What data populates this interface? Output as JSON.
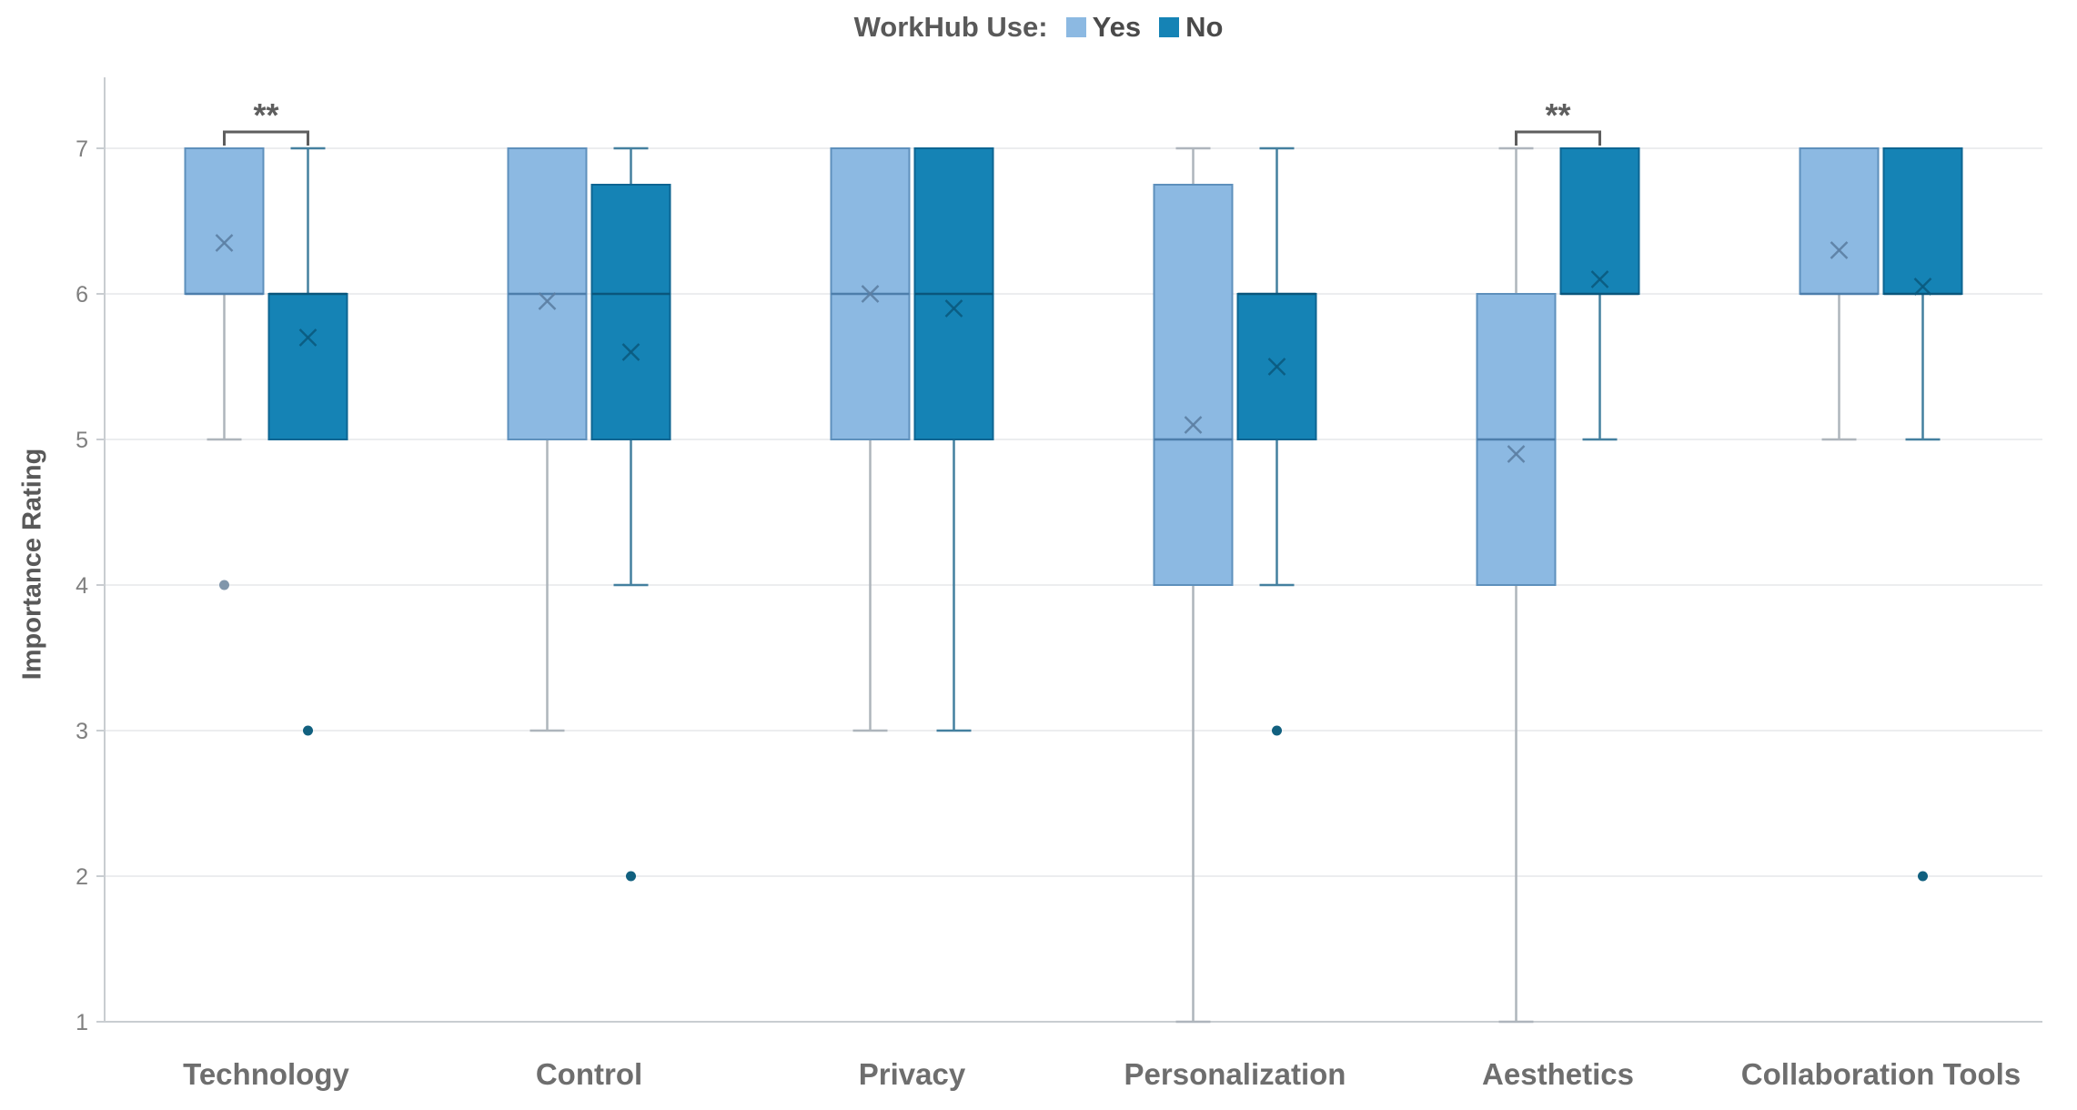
{
  "legend": {
    "title": "WorkHub Use:",
    "items": [
      {
        "label": "Yes",
        "color": "#8CB9E2"
      },
      {
        "label": "No",
        "color": "#1583B5"
      }
    ]
  },
  "colors": {
    "yes_fill": "#8CB9E2",
    "yes_border": "#5E90BC",
    "yes_whisker": "#AEB5BC",
    "yes_median": "#4D7EAB",
    "yes_mean": "#5C7FA3",
    "yes_outlier": "#8096AB",
    "no_fill": "#1583B5",
    "no_border": "#0D6592",
    "no_whisker": "#44809F",
    "no_median": "#0A567C",
    "no_mean": "#0B5A7F",
    "no_outlier": "#11607F",
    "grid": "#ECEDEF",
    "axis": "#C9CDD1",
    "tick_text": "#7F7F7F",
    "category_text": "#6E6E6E",
    "bracket": "#5E5E5E"
  },
  "chart_data": {
    "type": "boxplot",
    "title": "",
    "xlabel": "",
    "ylabel": "Importance Rating",
    "ylim": [
      1,
      7
    ],
    "yticks": [
      1,
      2,
      3,
      4,
      5,
      6,
      7
    ],
    "grid": true,
    "legend_position": "top",
    "categories": [
      "Technology",
      "Control",
      "Privacy",
      "Personalization",
      "Aesthetics",
      "Collaboration Tools"
    ],
    "series": [
      {
        "name": "Yes",
        "color": "#8CB9E2",
        "boxes": [
          {
            "q1": 6,
            "median": 6,
            "q3": 7,
            "mean": 6.35,
            "whisker_low": 5,
            "whisker_high": 7,
            "outliers": [
              4
            ]
          },
          {
            "q1": 5,
            "median": 6,
            "q3": 7,
            "mean": 5.95,
            "whisker_low": 3,
            "whisker_high": 7,
            "outliers": []
          },
          {
            "q1": 5,
            "median": 6,
            "q3": 7,
            "mean": 6.0,
            "whisker_low": 3,
            "whisker_high": 7,
            "outliers": []
          },
          {
            "q1": 4,
            "median": 5,
            "q3": 6.75,
            "mean": 5.1,
            "whisker_low": 1,
            "whisker_high": 7,
            "outliers": []
          },
          {
            "q1": 4,
            "median": 5,
            "q3": 6,
            "mean": 4.9,
            "whisker_low": 1,
            "whisker_high": 7,
            "outliers": []
          },
          {
            "q1": 6,
            "median": 6,
            "q3": 7,
            "mean": 6.3,
            "whisker_low": 5,
            "whisker_high": 7,
            "outliers": []
          }
        ]
      },
      {
        "name": "No",
        "color": "#1583B5",
        "boxes": [
          {
            "q1": 5,
            "median": 6,
            "q3": 6,
            "mean": 5.7,
            "whisker_low": 5,
            "whisker_high": 7,
            "outliers": [
              3
            ]
          },
          {
            "q1": 5,
            "median": 6,
            "q3": 6.75,
            "mean": 5.6,
            "whisker_low": 4,
            "whisker_high": 7,
            "outliers": [
              2
            ]
          },
          {
            "q1": 5,
            "median": 6,
            "q3": 7,
            "mean": 5.9,
            "whisker_low": 3,
            "whisker_high": 7,
            "outliers": []
          },
          {
            "q1": 5,
            "median": 6,
            "q3": 6,
            "mean": 5.5,
            "whisker_low": 4,
            "whisker_high": 7,
            "outliers": [
              3
            ]
          },
          {
            "q1": 6,
            "median": 6,
            "q3": 7,
            "mean": 6.1,
            "whisker_low": 5,
            "whisker_high": 7,
            "outliers": []
          },
          {
            "q1": 6,
            "median": 6,
            "q3": 7,
            "mean": 6.05,
            "whisker_low": 5,
            "whisker_high": 7,
            "outliers": [
              2
            ]
          }
        ]
      }
    ],
    "significance": [
      {
        "category": "Technology",
        "label": "**"
      },
      {
        "category": "Aesthetics",
        "label": "**"
      }
    ]
  }
}
